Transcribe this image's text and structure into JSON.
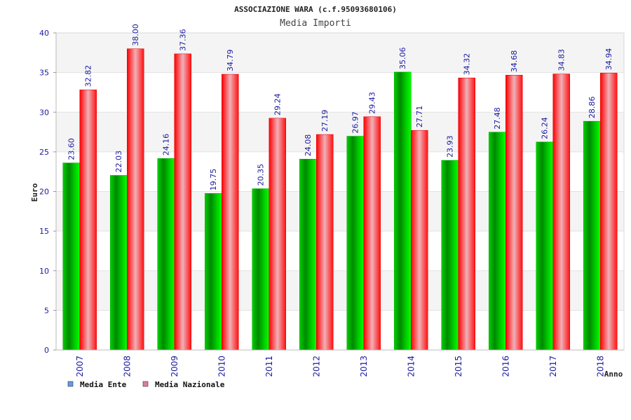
{
  "chart_data": {
    "type": "bar",
    "title": "ASSOCIAZIONE WARA (c.f.95093680106)",
    "subtitle": "Media Importi",
    "xlabel": "Anno",
    "ylabel": "Euro",
    "ylim": [
      0,
      40
    ],
    "yticks": [
      "0",
      "5",
      "10",
      "15",
      "20",
      "25",
      "30",
      "35",
      "40"
    ],
    "categories": [
      "2007",
      "2008",
      "2009",
      "2010",
      "2011",
      "2012",
      "2013",
      "2014",
      "2015",
      "2016",
      "2017",
      "2018"
    ],
    "series": [
      {
        "name": "Media Ente",
        "legend_color": "#6699ee",
        "values": [
          23.6,
          22.03,
          24.16,
          19.75,
          20.35,
          24.08,
          26.97,
          35.06,
          23.93,
          27.48,
          26.24,
          28.86
        ],
        "labels": [
          "23.60",
          "22.03",
          "24.16",
          "19.75",
          "20.35",
          "24.08",
          "26.97",
          "35.06",
          "23.93",
          "27.48",
          "26.24",
          "28.86"
        ]
      },
      {
        "name": "Media Nazionale",
        "legend_color": "#e07aa8",
        "values": [
          32.82,
          38.0,
          37.36,
          34.79,
          29.24,
          27.19,
          29.43,
          27.71,
          34.32,
          34.68,
          34.83,
          34.94
        ],
        "labels": [
          "32.82",
          "38.00",
          "37.36",
          "34.79",
          "29.24",
          "27.19",
          "29.43",
          "27.71",
          "34.32",
          "34.68",
          "34.83",
          "34.94"
        ]
      }
    ],
    "grid": true,
    "legend_position": "bottom-left"
  }
}
